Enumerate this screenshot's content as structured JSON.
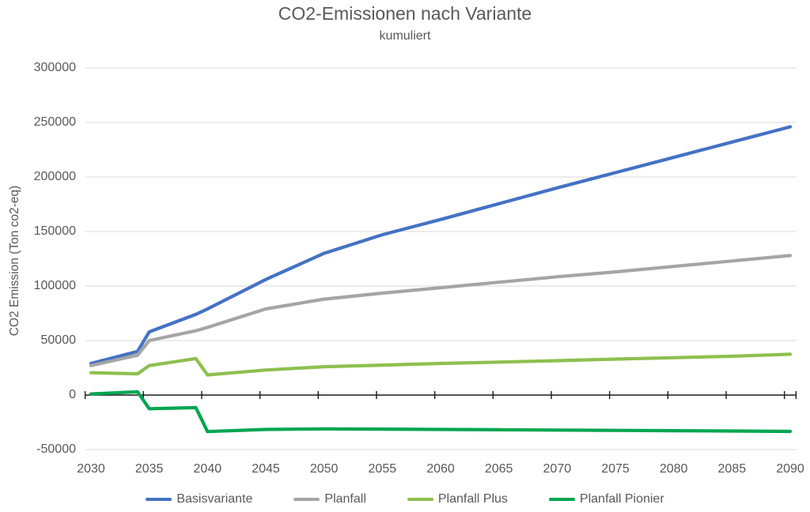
{
  "header": {
    "title": "CO2-Emissionen nach Variante",
    "subtitle": "kumuliert"
  },
  "colors": {
    "text": "#595959",
    "gridline": "#D9D9D9",
    "axis_line": "#1A1A1A",
    "background": "#FFFFFF"
  },
  "chart_data": {
    "type": "line",
    "title": "CO2-Emissionen nach Variante",
    "subtitle": "kumuliert",
    "xlabel": "",
    "ylabel": "CO2 Emission (Ton co2-eq)",
    "grid": true,
    "legend_position": "bottom",
    "ylim": [
      -50000,
      300000
    ],
    "xlim": [
      2030,
      2090
    ],
    "yticks": [
      300000,
      250000,
      200000,
      150000,
      100000,
      50000,
      0,
      -50000
    ],
    "xticks": [
      2030,
      2035,
      2040,
      2045,
      2050,
      2055,
      2060,
      2065,
      2070,
      2075,
      2080,
      2085,
      2090
    ],
    "x": [
      2030,
      2034,
      2035,
      2039,
      2040,
      2045,
      2050,
      2055,
      2060,
      2065,
      2070,
      2075,
      2080,
      2085,
      2090
    ],
    "series": [
      {
        "name": "Basisvariante",
        "color": "#4472C4",
        "values": [
          29000,
          40000,
          58000,
          74000,
          79000,
          106000,
          130000,
          147000,
          161000,
          175500,
          190000,
          204000,
          218000,
          232000,
          246000
        ]
      },
      {
        "name": "Planfall",
        "color": "#A5A5A5",
        "values": [
          27000,
          36500,
          50000,
          59000,
          62000,
          79000,
          88000,
          93500,
          98500,
          103500,
          108500,
          113000,
          118000,
          123000,
          128000
        ]
      },
      {
        "name": "Planfall Plus",
        "color": "#8DC04E",
        "values": [
          20500,
          19500,
          27000,
          33500,
          18500,
          23000,
          26000,
          27500,
          29000,
          30200,
          31500,
          33000,
          34300,
          35600,
          37500
        ]
      },
      {
        "name": "Planfall Pionier",
        "color": "#00A651",
        "values": [
          1000,
          3000,
          -12500,
          -11500,
          -33500,
          -31500,
          -31000,
          -31200,
          -31500,
          -31800,
          -32100,
          -32400,
          -32700,
          -33000,
          -33300
        ]
      }
    ]
  }
}
